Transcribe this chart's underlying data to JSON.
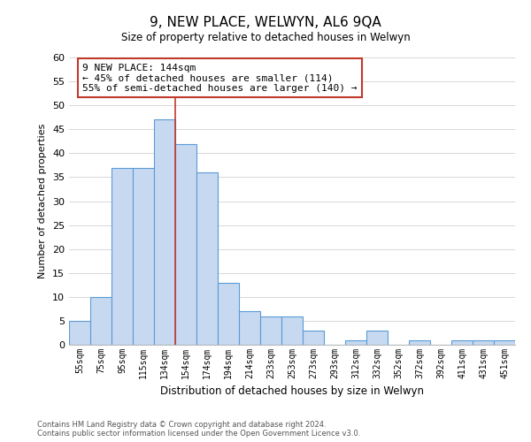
{
  "title": "9, NEW PLACE, WELWYN, AL6 9QA",
  "subtitle": "Size of property relative to detached houses in Welwyn",
  "xlabel": "Distribution of detached houses by size in Welwyn",
  "ylabel": "Number of detached properties",
  "categories": [
    "55sqm",
    "75sqm",
    "95sqm",
    "115sqm",
    "134sqm",
    "154sqm",
    "174sqm",
    "194sqm",
    "214sqm",
    "233sqm",
    "253sqm",
    "273sqm",
    "293sqm",
    "312sqm",
    "332sqm",
    "352sqm",
    "372sqm",
    "392sqm",
    "411sqm",
    "431sqm",
    "451sqm"
  ],
  "values": [
    5,
    10,
    37,
    37,
    47,
    42,
    36,
    13,
    7,
    6,
    6,
    3,
    0,
    1,
    3,
    0,
    1,
    0,
    1,
    1,
    1
  ],
  "bar_color": "#c6d9f0",
  "bar_edge_color": "#5b9bd5",
  "marker_line_color": "#c0392b",
  "annotation_title": "9 NEW PLACE: 144sqm",
  "annotation_line1": "← 45% of detached houses are smaller (114)",
  "annotation_line2": "55% of semi-detached houses are larger (140) →",
  "annotation_box_edge_color": "#c0392b",
  "ylim": [
    0,
    60
  ],
  "yticks": [
    0,
    5,
    10,
    15,
    20,
    25,
    30,
    35,
    40,
    45,
    50,
    55,
    60
  ],
  "footer_line1": "Contains HM Land Registry data © Crown copyright and database right 2024.",
  "footer_line2": "Contains public sector information licensed under the Open Government Licence v3.0.",
  "background_color": "#ffffff",
  "grid_color": "#d8d8d8"
}
